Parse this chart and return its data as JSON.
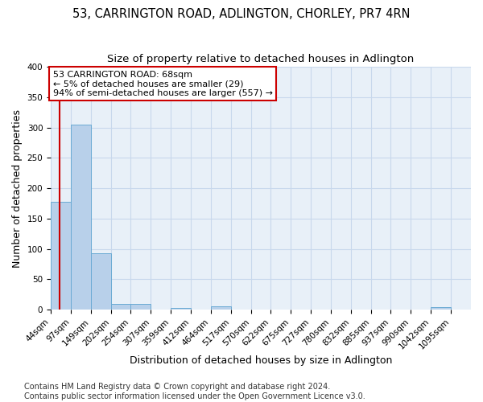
{
  "title1": "53, CARRINGTON ROAD, ADLINGTON, CHORLEY, PR7 4RN",
  "title2": "Size of property relative to detached houses in Adlington",
  "xlabel": "Distribution of detached houses by size in Adlington",
  "ylabel": "Number of detached properties",
  "footnote": "Contains HM Land Registry data © Crown copyright and database right 2024.\nContains public sector information licensed under the Open Government Licence v3.0.",
  "bin_edges": [
    44,
    97,
    149,
    202,
    254,
    307,
    359,
    412,
    464,
    517,
    570,
    622,
    675,
    727,
    780,
    832,
    885,
    937,
    990,
    1042,
    1095
  ],
  "bar_heights": [
    178,
    305,
    93,
    9,
    10,
    0,
    3,
    0,
    5,
    0,
    0,
    0,
    0,
    0,
    0,
    0,
    0,
    0,
    0,
    4
  ],
  "bar_color": "#b8d0ea",
  "bar_edge_color": "#6aaad4",
  "grid_color": "#c8d8ec",
  "background_color": "#e8f0f8",
  "property_size": 68,
  "property_label": "53 CARRINGTON ROAD: 68sqm",
  "annotation_line1": "← 5% of detached houses are smaller (29)",
  "annotation_line2": "94% of semi-detached houses are larger (557) →",
  "annotation_box_color": "#ffffff",
  "annotation_box_edge_color": "#cc0000",
  "vline_color": "#cc0000",
  "ylim": [
    0,
    400
  ],
  "yticks": [
    0,
    50,
    100,
    150,
    200,
    250,
    300,
    350,
    400
  ],
  "title_fontsize": 10.5,
  "subtitle_fontsize": 9.5,
  "axis_label_fontsize": 9,
  "tick_fontsize": 7.5,
  "annotation_fontsize": 8,
  "footnote_fontsize": 7
}
